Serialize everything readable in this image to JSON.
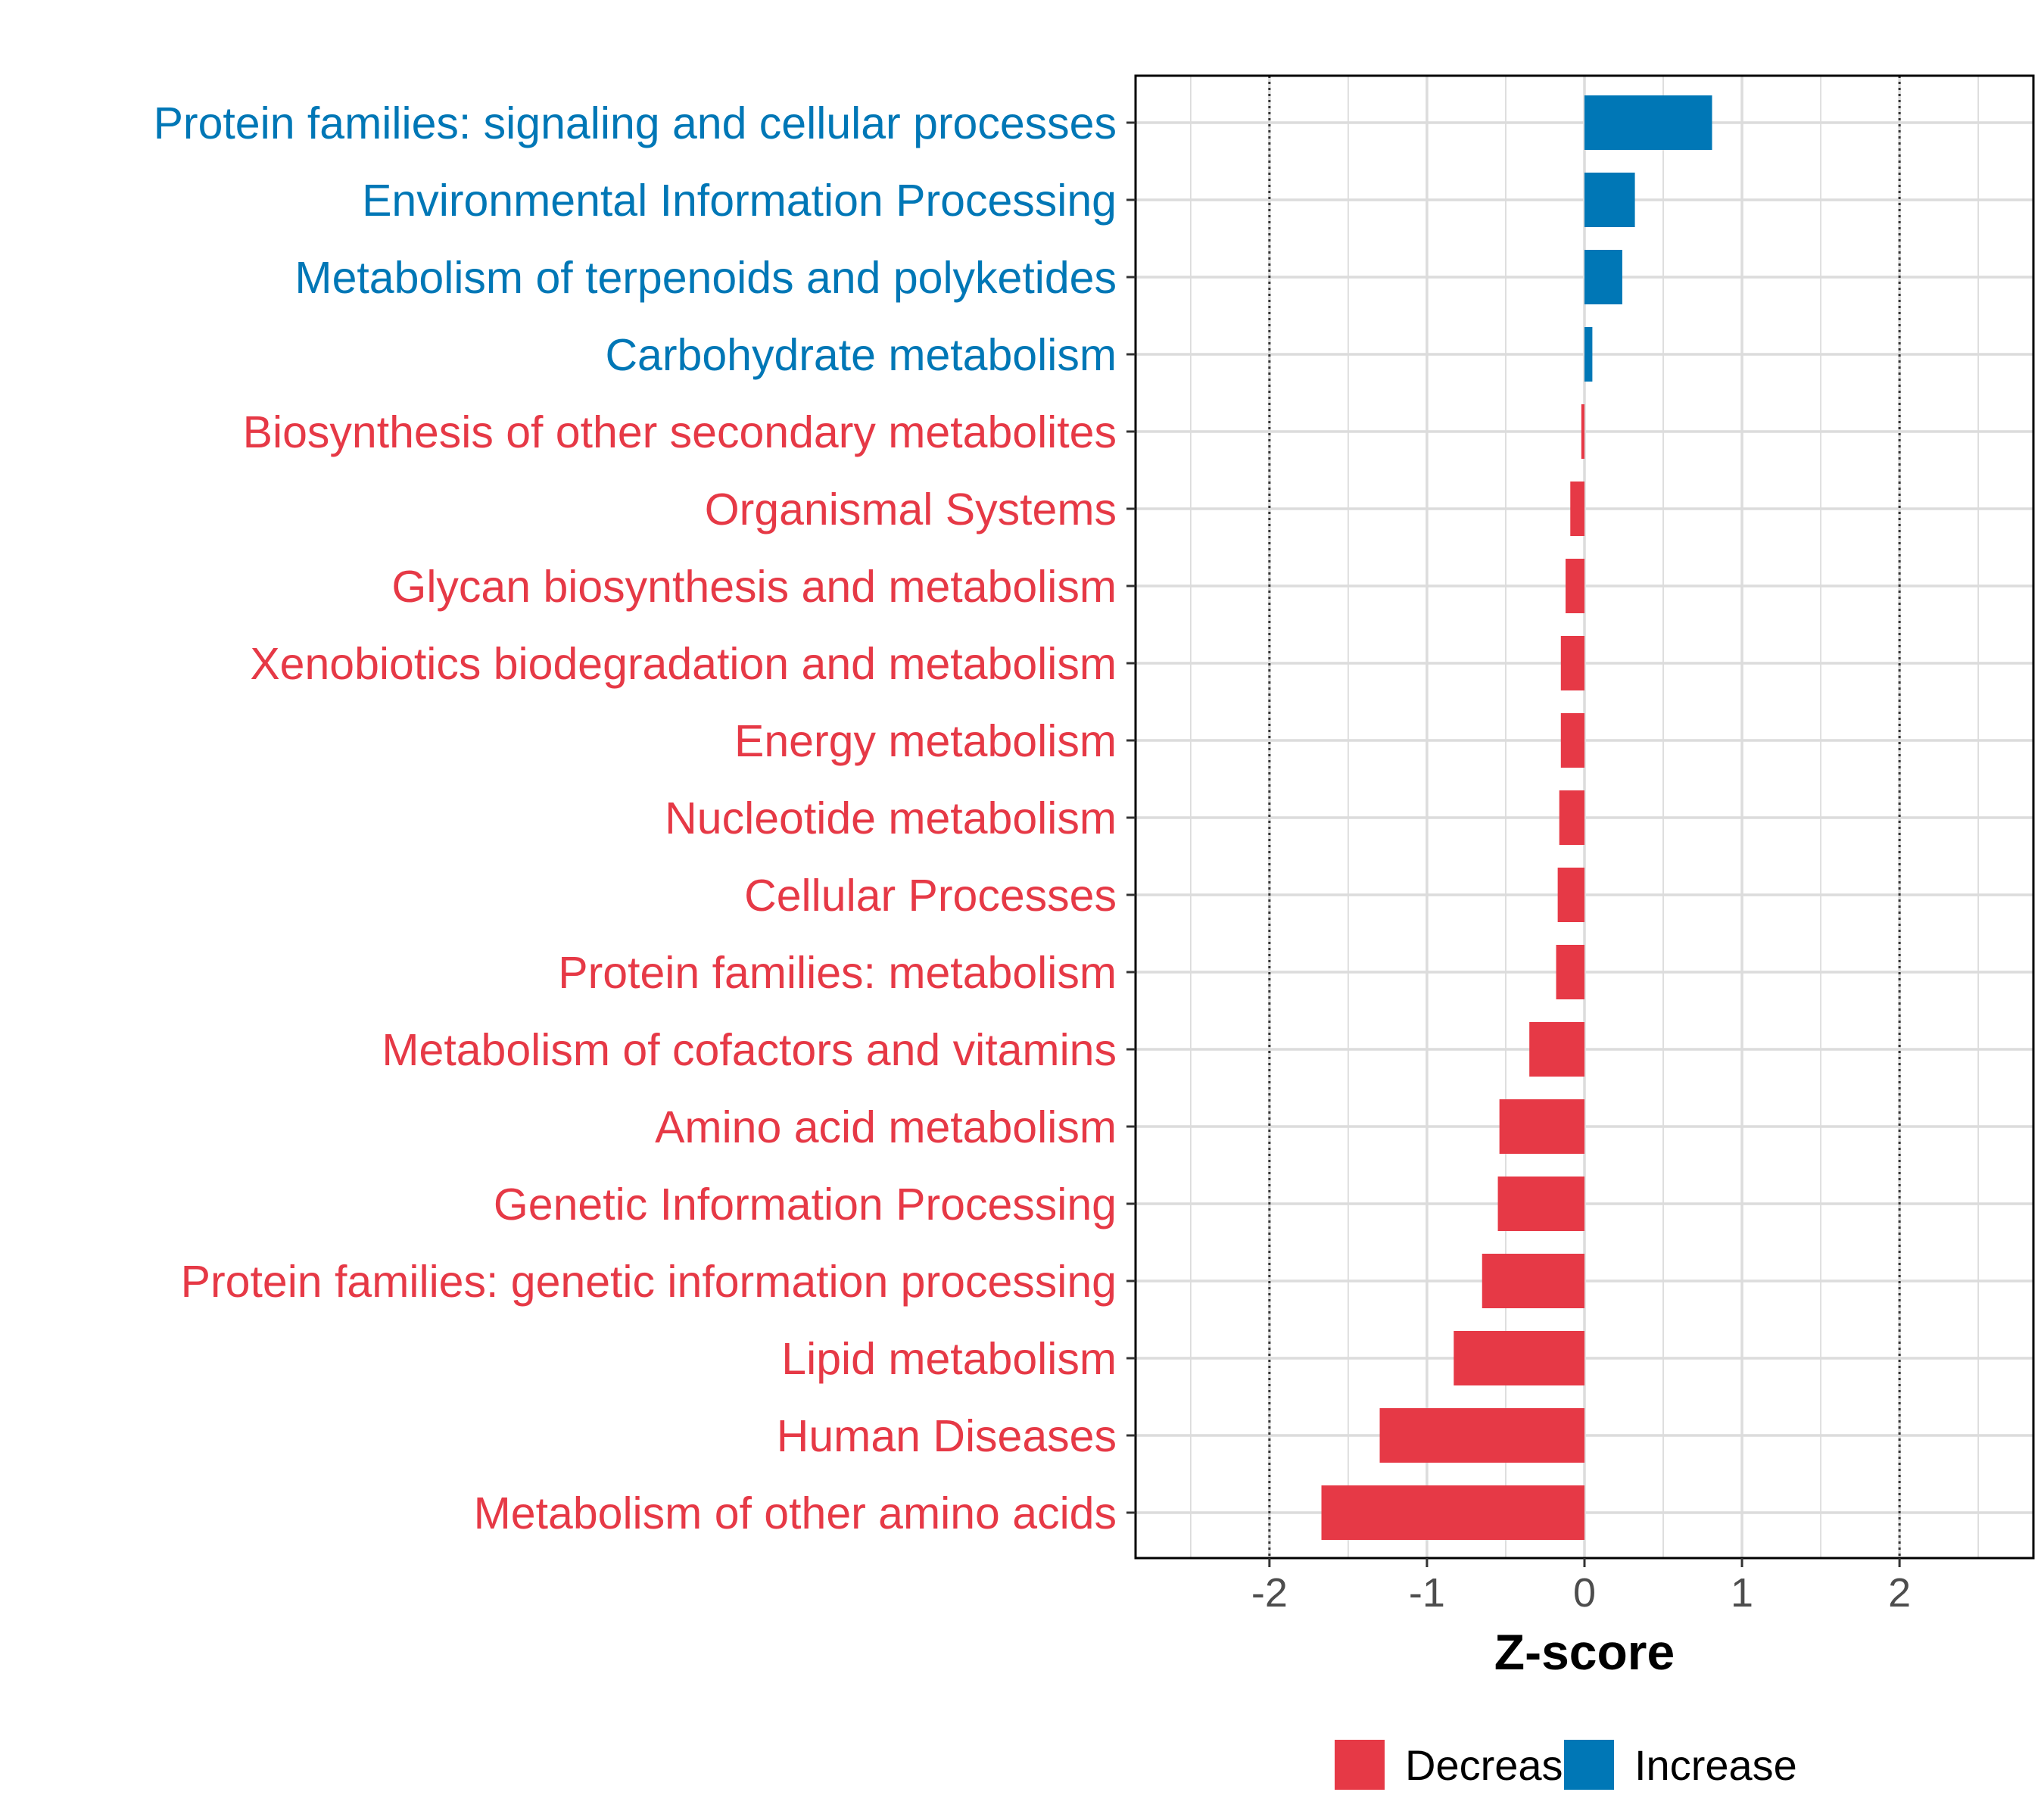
{
  "chart_data": {
    "type": "bar",
    "orientation": "horizontal",
    "title": "",
    "xlabel": "Z-score",
    "ylabel": "",
    "xlim": [
      -2.85,
      2.85
    ],
    "xticks": [
      -2,
      -1,
      0,
      1,
      2
    ],
    "xtick_labels": [
      "-2",
      "-1",
      "0",
      "1",
      "2"
    ],
    "reference_lines": [
      -2,
      2
    ],
    "grid": true,
    "categories": [
      "Protein families: signaling and cellular processes",
      "Environmental Information Processing",
      "Metabolism of terpenoids and polyketides",
      "Carbohydrate metabolism",
      "Biosynthesis of other secondary metabolites",
      "Organismal Systems",
      "Glycan biosynthesis and metabolism",
      "Xenobiotics biodegradation and metabolism",
      "Energy metabolism",
      "Nucleotide metabolism",
      "Cellular Processes",
      "Protein families: metabolism",
      "Metabolism of cofactors and vitamins",
      "Amino acid metabolism",
      "Genetic Information Processing",
      "Protein families: genetic information processing",
      "Lipid metabolism",
      "Human Diseases",
      "Metabolism of other amino acids"
    ],
    "values": [
      0.81,
      0.32,
      0.24,
      0.05,
      -0.02,
      -0.09,
      -0.12,
      -0.15,
      -0.15,
      -0.16,
      -0.17,
      -0.18,
      -0.35,
      -0.54,
      -0.55,
      -0.65,
      -0.83,
      -1.3,
      -1.67
    ],
    "groups": [
      "Increase",
      "Increase",
      "Increase",
      "Increase",
      "Decrease",
      "Decrease",
      "Decrease",
      "Decrease",
      "Decrease",
      "Decrease",
      "Decrease",
      "Decrease",
      "Decrease",
      "Decrease",
      "Decrease",
      "Decrease",
      "Decrease",
      "Decrease",
      "Decrease"
    ],
    "legend": {
      "position": "bottom",
      "entries": [
        {
          "name": "Decrease",
          "color": "#e63946"
        },
        {
          "name": "Increase",
          "color": "#0077b6"
        }
      ]
    },
    "colors": {
      "Decrease": "#e63946",
      "Increase": "#0077b6"
    }
  }
}
